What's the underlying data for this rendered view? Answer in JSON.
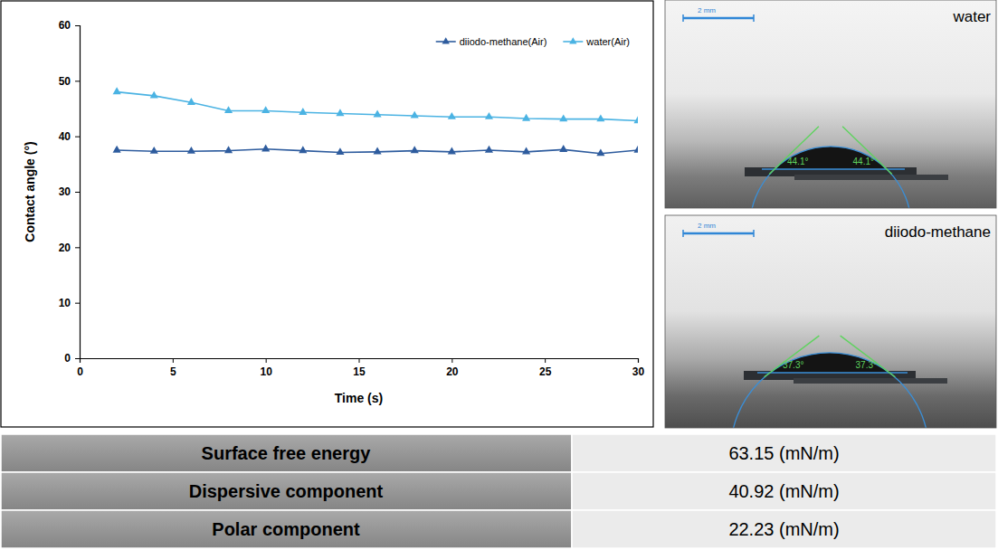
{
  "chart_data": {
    "type": "line",
    "xlabel": "Time (s)",
    "ylabel": "Contact angle (°)",
    "x": [
      2,
      4,
      6,
      8,
      10,
      12,
      14,
      16,
      18,
      20,
      22,
      24,
      26,
      28,
      30
    ],
    "series": [
      {
        "name": "diiodo-methane(Air)",
        "color": "#2e5c9e",
        "marker": "triangle",
        "values": [
          37.5,
          37.3,
          37.3,
          37.4,
          37.7,
          37.4,
          37.1,
          37.2,
          37.4,
          37.2,
          37.5,
          37.2,
          37.6,
          36.9,
          37.5
        ]
      },
      {
        "name": "water(Air)",
        "color": "#4bb3e3",
        "marker": "triangle",
        "values": [
          48.0,
          47.3,
          46.1,
          44.6,
          44.6,
          44.3,
          44.1,
          43.9,
          43.7,
          43.5,
          43.5,
          43.2,
          43.1,
          43.1,
          42.8
        ]
      }
    ],
    "xlim": [
      0,
      30
    ],
    "xticks": [
      0,
      5,
      10,
      15,
      20,
      25,
      30
    ],
    "ylim": [
      0,
      60
    ],
    "yticks": [
      0,
      10,
      20,
      30,
      40,
      50,
      60
    ],
    "grid": false,
    "legend": "upper right"
  },
  "images": [
    {
      "label": "water",
      "scale_bar": "2 mm",
      "angles": [
        "44.1°",
        "44.1°"
      ]
    },
    {
      "label": "diiodo-methane",
      "scale_bar": "2 mm",
      "angles": [
        "37.3°",
        "37.3°"
      ]
    }
  ],
  "table": {
    "rows": [
      [
        "Surface free energy",
        "63.15 (mN/m)"
      ],
      [
        "Dispersive component",
        "40.92 (mN/m)"
      ],
      [
        "Polar component",
        "22.23 (mN/m)"
      ]
    ]
  }
}
